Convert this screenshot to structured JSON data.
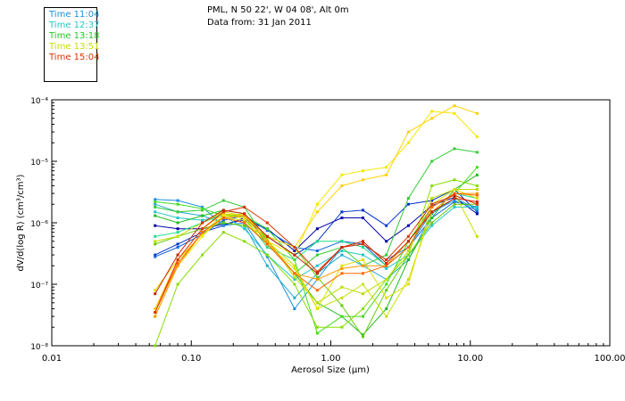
{
  "header": {
    "location": "PML, N 50 22', W 04 08', Alt 0m",
    "date": "Data from: 31 Jan 2011"
  },
  "chart_data": {
    "type": "line",
    "title": "PML, N 50 22', W 04 08', Alt 0m",
    "subtitle": "Data from: 31 Jan 2011",
    "xlabel": "Aerosol Size (μm)",
    "ylabel": "dV/d(log R) (cm³/cm³)",
    "x_scale": "log",
    "y_scale": "log",
    "xlim": [
      0.01,
      100
    ],
    "ylim": [
      1e-08,
      0.0001
    ],
    "x_ticks": [
      {
        "value": 0.01,
        "label": "0.01"
      },
      {
        "value": 0.1,
        "label": "0.10"
      },
      {
        "value": 1,
        "label": "1.00"
      },
      {
        "value": 10,
        "label": "10.00"
      },
      {
        "value": 100,
        "label": "100.00"
      }
    ],
    "y_ticks": [
      {
        "value": 1e-08,
        "label": "10⁻⁸"
      },
      {
        "value": 1e-07,
        "label": "10⁻⁷"
      },
      {
        "value": 1e-06,
        "label": "10⁻⁶"
      },
      {
        "value": 1e-05,
        "label": "10⁻⁵"
      },
      {
        "value": 0.0001,
        "label": "10⁻⁴"
      }
    ],
    "grid": false,
    "legend_position": "top-left outside",
    "legend": [
      {
        "label": "Time 11:04",
        "color": "#1a8fe0"
      },
      {
        "label": "Time 12:37",
        "color": "#22c8c8"
      },
      {
        "label": "Time 13:18",
        "color": "#22cc22"
      },
      {
        "label": "Time 13:51",
        "color": "#c8e000"
      },
      {
        "label": "Time 15:04",
        "color": "#dd3300"
      }
    ],
    "x": [
      0.055,
      0.08,
      0.12,
      0.17,
      0.24,
      0.35,
      0.55,
      0.8,
      1.2,
      1.7,
      2.5,
      3.6,
      5.3,
      7.7,
      11.2
    ],
    "series": [
      {
        "color": "#0000aa",
        "values": [
          9e-07,
          8e-07,
          8e-07,
          9.5e-07,
          1.1e-06,
          8e-07,
          3.5e-07,
          8e-07,
          1.2e-06,
          1.2e-06,
          5e-07,
          9e-07,
          1.9e-06,
          2.6e-06,
          1.4e-06
        ]
      },
      {
        "color": "#0033cc",
        "values": [
          3e-07,
          4.5e-07,
          7e-07,
          9e-07,
          1.2e-06,
          6e-07,
          3e-07,
          5e-07,
          1.5e-06,
          1.6e-06,
          9e-07,
          2e-06,
          2.3e-06,
          3.5e-06,
          1.5e-06
        ]
      },
      {
        "color": "#1166dd",
        "values": [
          2.8e-07,
          4e-07,
          6.5e-07,
          1.1e-06,
          1.3e-06,
          7.5e-07,
          4e-07,
          3.5e-07,
          5e-07,
          4.5e-07,
          2e-07,
          4e-07,
          1.2e-06,
          2.2e-06,
          1.8e-06
        ]
      },
      {
        "color": "#1a8fe0",
        "values": [
          2.4e-06,
          2.3e-06,
          1.8e-06,
          9e-07,
          1e-06,
          2.8e-07,
          4e-08,
          1.2e-07,
          4e-07,
          4.5e-07,
          2.5e-07,
          4e-07,
          1.5e-06,
          2.3e-06,
          1.6e-06
        ]
      },
      {
        "color": "#22aacc",
        "values": [
          2e-06,
          1.5e-06,
          1.3e-06,
          1e-06,
          9e-07,
          2e-07,
          6e-08,
          1.5e-07,
          3e-07,
          2e-07,
          1.2e-07,
          2.5e-07,
          1.4e-06,
          2.5e-06,
          1.7e-06
        ]
      },
      {
        "color": "#22c8c8",
        "values": [
          1.5e-06,
          1.2e-06,
          1.1e-06,
          1.3e-06,
          8e-07,
          3e-07,
          1.2e-07,
          2e-07,
          3.5e-07,
          3e-07,
          1.8e-07,
          3e-07,
          9e-07,
          1.8e-06,
          1.8e-06
        ]
      },
      {
        "color": "#22dd88",
        "values": [
          6e-07,
          7e-07,
          1e-06,
          1.4e-06,
          1.2e-06,
          4e-07,
          2.5e-07,
          5e-07,
          5e-07,
          4e-07,
          2e-07,
          4e-07,
          1.8e-06,
          3e-06,
          2.5e-06
        ]
      },
      {
        "color": "#33cc33",
        "values": [
          1.8e-06,
          1.5e-06,
          1.6e-06,
          2.3e-06,
          1.8e-06,
          5e-07,
          1.5e-07,
          3e-07,
          4e-07,
          2e-07,
          3e-07,
          2.5e-06,
          1e-05,
          1.6e-05,
          1.4e-05
        ]
      },
      {
        "color": "#22bb22",
        "values": [
          1.3e-06,
          1e-06,
          1.3e-06,
          1.6e-06,
          1.4e-06,
          4.5e-07,
          1.5e-07,
          5e-08,
          3e-08,
          1.5e-08,
          4e-08,
          2.5e-07,
          1.2e-06,
          3.5e-06,
          6e-06
        ]
      },
      {
        "color": "#44dd22",
        "values": [
          2.2e-06,
          2e-06,
          1.7e-06,
          1.3e-06,
          1.3e-06,
          8e-07,
          2.5e-07,
          1.6e-08,
          3e-08,
          3e-08,
          1e-07,
          5e-07,
          1.8e-06,
          3e-06,
          8e-06
        ]
      },
      {
        "color": "#66cc00",
        "values": [
          4.5e-07,
          6e-07,
          8e-07,
          1e-06,
          9e-07,
          6e-07,
          4e-07,
          1.3e-07,
          4.5e-08,
          1.4e-08,
          8e-08,
          3e-07,
          1e-06,
          2e-06,
          2e-06
        ]
      },
      {
        "color": "#88dd00",
        "values": [
          1e-08,
          1e-07,
          3e-07,
          7e-07,
          5e-07,
          3e-07,
          1e-07,
          2e-08,
          2e-08,
          4e-08,
          1.2e-07,
          3e-07,
          4e-06,
          5e-06,
          4e-06
        ]
      },
      {
        "color": "#bbdd00",
        "values": [
          3e-08,
          2e-07,
          7e-07,
          1.3e-06,
          1.4e-06,
          5.5e-07,
          1.3e-07,
          5e-08,
          9e-08,
          7e-08,
          1.2e-07,
          3.5e-07,
          2.5e-06,
          3.5e-06,
          3.5e-06
        ]
      },
      {
        "color": "#c8e000",
        "values": [
          5e-07,
          6e-07,
          1e-06,
          1.5e-06,
          1.3e-06,
          5e-07,
          2e-07,
          4e-08,
          6e-08,
          1e-07,
          3e-08,
          1.2e-07,
          1.5e-06,
          3e-06,
          6e-07
        ]
      },
      {
        "color": "#e0e000",
        "values": [
          8e-08,
          2.5e-07,
          6.5e-07,
          1.2e-06,
          1.1e-06,
          4.5e-07,
          1.8e-07,
          4e-08,
          2e-07,
          2.5e-07,
          6e-08,
          1e-07,
          2e-06,
          3.5e-06,
          2.5e-06
        ]
      },
      {
        "color": "#f4e800",
        "values": [
          4e-08,
          2e-07,
          6e-07,
          1.3e-06,
          1.2e-06,
          5e-07,
          3e-07,
          2e-06,
          6e-06,
          7e-06,
          8e-06,
          2e-05,
          6.5e-05,
          6e-05,
          2.5e-05
        ]
      },
      {
        "color": "#ffd000",
        "values": [
          4e-08,
          2.5e-07,
          8e-07,
          1.4e-06,
          1.3e-06,
          6e-07,
          4e-07,
          1.5e-06,
          4e-06,
          5e-06,
          6e-06,
          3e-05,
          5e-05,
          8e-05,
          6e-05
        ]
      },
      {
        "color": "#ff9900",
        "values": [
          3e-08,
          2e-07,
          7e-07,
          1.2e-06,
          1.3e-06,
          5e-07,
          1.5e-07,
          1.2e-07,
          1.8e-07,
          2e-07,
          2e-07,
          5e-07,
          1.5e-06,
          3e-06,
          3e-06
        ]
      },
      {
        "color": "#ff6600",
        "values": [
          3.5e-08,
          2.2e-07,
          7e-07,
          1.2e-06,
          1e-06,
          4.5e-07,
          1.5e-07,
          8e-08,
          1.5e-07,
          1.5e-07,
          2e-07,
          4e-07,
          1.8e-06,
          3e-06,
          2.8e-06
        ]
      },
      {
        "color": "#dd3300",
        "values": [
          3.5e-08,
          2.5e-07,
          8e-07,
          1.5e-06,
          1.8e-06,
          1e-06,
          4e-07,
          1.6e-07,
          4e-07,
          4.5e-07,
          2.5e-07,
          6e-07,
          2e-06,
          2.8e-06,
          2e-06
        ]
      },
      {
        "color": "#cc2200",
        "values": [
          7e-08,
          3e-07,
          1e-06,
          1.6e-06,
          1.4e-06,
          6e-07,
          3e-07,
          1.5e-07,
          4e-07,
          5e-07,
          2.2e-07,
          5e-07,
          1.5e-06,
          2.5e-06,
          2.2e-06
        ]
      }
    ]
  }
}
